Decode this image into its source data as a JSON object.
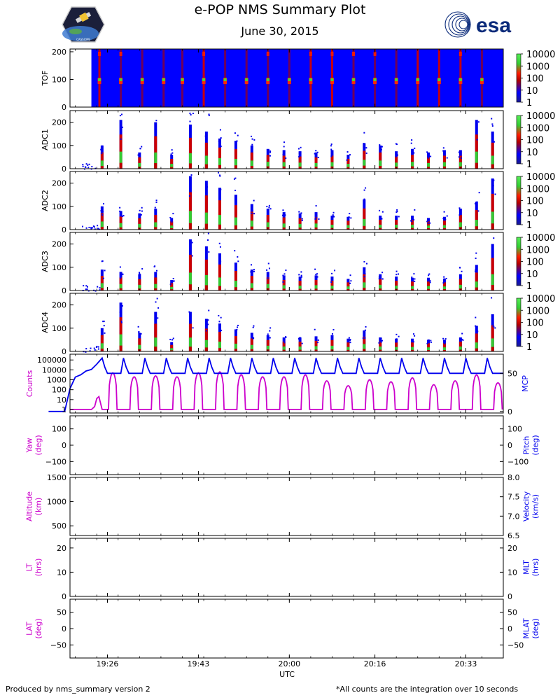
{
  "header": {
    "title": "e-POP NMS Summary Plot",
    "date": "June 30, 2015",
    "logo_left": "e-POP mission patch",
    "logo_right": "esa"
  },
  "footer": {
    "left": "Produced by nms_summary version 2",
    "right": "*All counts are the integration over 10 seconds"
  },
  "colors": {
    "magenta": "#cc00cc",
    "blue": "#0000ee",
    "spectro_bg": "#0000ff",
    "esa_blue": "#0a2a7a"
  },
  "chart_data": [
    {
      "type": "heatmap",
      "name": "tof",
      "ylabel": "TOF",
      "ylim": [
        0,
        210
      ],
      "yticks": [
        0,
        100,
        200
      ],
      "colorbar": {
        "scale": "log",
        "ticks": [
          "1",
          "10",
          "100",
          "1000",
          "10000"
        ]
      },
      "data_start": "19:23",
      "spike_times": [
        "19:24.5",
        "19:28.5",
        "19:32.5",
        "19:36.5",
        "19:40",
        "19:44",
        "19:48",
        "19:52",
        "19:56",
        "20:00",
        "20:04",
        "20:08",
        "20:12",
        "20:16",
        "20:20",
        "20:24",
        "20:28",
        "20:32",
        "20:36"
      ]
    },
    {
      "type": "scatter",
      "name": "adc1",
      "ylabel": "ADC1",
      "ylim": [
        0,
        250
      ],
      "yticks": [
        0,
        100,
        200
      ],
      "colorbar": {
        "scale": "log",
        "ticks": [
          "1",
          "10",
          "100",
          "1000",
          "10000"
        ]
      },
      "times": [
        "19:25",
        "19:28.5",
        "19:32",
        "19:35",
        "19:38",
        "19:41.5",
        "19:44.5",
        "19:47",
        "19:50",
        "19:53",
        "19:56",
        "19:59",
        "20:02",
        "20:05",
        "20:08",
        "20:11",
        "20:14",
        "20:17",
        "20:20",
        "20:23",
        "20:26",
        "20:29",
        "20:32",
        "20:35",
        "20:38"
      ],
      "peaks": [
        100,
        210,
        70,
        200,
        60,
        190,
        160,
        130,
        120,
        100,
        85,
        80,
        75,
        70,
        80,
        60,
        110,
        100,
        75,
        85,
        70,
        80,
        80,
        210,
        160
      ]
    },
    {
      "type": "scatter",
      "name": "adc2",
      "ylabel": "ADC2",
      "ylim": [
        0,
        250
      ],
      "yticks": [
        0,
        100,
        200
      ],
      "colorbar": {
        "scale": "log",
        "ticks": [
          "1",
          "10",
          "100",
          "1000",
          "10000"
        ]
      },
      "times": [
        "19:25",
        "19:28.5",
        "19:32",
        "19:35",
        "19:38",
        "19:41.5",
        "19:44.5",
        "19:47",
        "19:50",
        "19:53",
        "19:56",
        "19:59",
        "20:02",
        "20:05",
        "20:08",
        "20:11",
        "20:14",
        "20:17",
        "20:20",
        "20:23",
        "20:26",
        "20:29",
        "20:32",
        "20:35",
        "20:38"
      ],
      "peaks": [
        100,
        80,
        70,
        90,
        50,
        230,
        210,
        180,
        150,
        110,
        90,
        75,
        70,
        75,
        60,
        55,
        130,
        60,
        60,
        60,
        50,
        55,
        90,
        120,
        220
      ]
    },
    {
      "type": "scatter",
      "name": "adc3",
      "ylabel": "ADC3",
      "ylim": [
        0,
        250
      ],
      "yticks": [
        0,
        100,
        200
      ],
      "colorbar": {
        "scale": "log",
        "ticks": [
          "1",
          "10",
          "100",
          "1000",
          "10000"
        ]
      },
      "times": [
        "19:25",
        "19:28.5",
        "19:32",
        "19:35",
        "19:38",
        "19:41.5",
        "19:44.5",
        "19:47",
        "19:50",
        "19:53",
        "19:56",
        "19:59",
        "20:02",
        "20:05",
        "20:08",
        "20:11",
        "20:14",
        "20:17",
        "20:20",
        "20:23",
        "20:26",
        "20:29",
        "20:32",
        "20:35",
        "20:38"
      ],
      "peaks": [
        90,
        80,
        70,
        80,
        45,
        220,
        190,
        160,
        120,
        90,
        80,
        65,
        60,
        65,
        60,
        50,
        100,
        70,
        60,
        55,
        55,
        50,
        70,
        110,
        200
      ]
    },
    {
      "type": "scatter",
      "name": "adc4",
      "ylabel": "ADC4",
      "ylim": [
        0,
        250
      ],
      "yticks": [
        0,
        100,
        200
      ],
      "colorbar": {
        "scale": "log",
        "ticks": [
          "1",
          "10",
          "100",
          "1000",
          "10000"
        ]
      },
      "times": [
        "19:25",
        "19:28.5",
        "19:32",
        "19:35",
        "19:38",
        "19:41.5",
        "19:44.5",
        "19:47",
        "19:50",
        "19:53",
        "19:56",
        "19:59",
        "20:02",
        "20:05",
        "20:08",
        "20:11",
        "20:14",
        "20:17",
        "20:20",
        "20:23",
        "20:26",
        "20:29",
        "20:32",
        "20:35",
        "20:38"
      ],
      "peaks": [
        100,
        210,
        80,
        170,
        40,
        170,
        140,
        120,
        95,
        80,
        70,
        60,
        60,
        65,
        70,
        55,
        90,
        60,
        55,
        55,
        50,
        50,
        60,
        110,
        160
      ]
    },
    {
      "type": "line",
      "name": "counts-mcp",
      "ylabel_left": "Counts",
      "ylabel_right": "MCP",
      "yscale_left": "log",
      "ylim_left_decades": [
        0,
        5.3
      ],
      "yticks_left": [
        "1",
        "10",
        "100",
        "1000",
        "10000",
        "100000"
      ],
      "ylim_right": [
        -2,
        75
      ],
      "yticks_right": [
        0,
        50
      ],
      "series": [
        {
          "name": "Counts",
          "color": "#cc00cc",
          "x": [
            "19:19",
            "19:20",
            "19:21",
            "19:22",
            "19:23",
            "19:23.6",
            "19:24",
            "19:24.4",
            "19:25",
            "19:25.5",
            "19:26",
            "19:27",
            "19:28",
            "19:29",
            "19:30",
            "19:31",
            "19:32",
            "19:33",
            "19:34",
            "19:35",
            "19:36",
            "19:37",
            "19:38",
            "19:39",
            "19:40",
            "19:41",
            "19:42",
            "19:43",
            "19:44",
            "19:45",
            "19:46",
            "19:47",
            "19:48",
            "19:49",
            "19:50",
            "19:51",
            "19:52",
            "19:53",
            "19:54",
            "19:55",
            "19:56",
            "19:57",
            "19:58",
            "19:59",
            "20:00",
            "20:01",
            "20:02",
            "20:03",
            "20:04",
            "20:05",
            "20:06",
            "20:07",
            "20:08",
            "20:09",
            "20:10",
            "20:11",
            "20:12",
            "20:13",
            "20:14",
            "20:15",
            "20:16",
            "20:17",
            "20:18",
            "20:19",
            "20:20",
            "20:21",
            "20:22",
            "20:23",
            "20:24",
            "20:25",
            "20:26",
            "20:27",
            "20:28",
            "20:29",
            "20:30",
            "20:31",
            "20:32",
            "20:33",
            "20:34",
            "20:35",
            "20:36",
            "20:37",
            "20:38",
            "20:39"
          ],
          "log10_values": [
            0,
            0,
            0,
            0,
            0,
            0.3,
            1.1,
            1.3,
            0,
            0,
            0,
            3.7,
            0,
            0,
            0,
            3.3,
            0,
            0,
            0,
            3.4,
            0,
            0,
            0,
            3.3,
            0,
            0,
            0,
            3.7,
            0,
            0,
            0,
            3.8,
            0,
            0,
            0,
            3.5,
            0,
            0,
            0,
            3.3,
            0,
            0,
            0,
            3.3,
            0,
            0,
            0,
            3.5,
            0,
            0,
            0,
            2.9,
            0,
            0,
            0,
            2.4,
            0,
            0,
            0,
            3.0,
            0,
            0,
            0,
            2.8,
            0,
            0,
            0,
            3.2,
            0,
            0,
            0,
            2.5,
            0,
            0,
            0,
            2.9,
            0,
            0,
            0,
            3.5,
            0,
            0,
            0,
            2.7
          ]
        },
        {
          "name": "MCP",
          "color": "#0000ee",
          "x": [
            "19:15",
            "19:16",
            "19:17",
            "19:18",
            "19:19",
            "19:20",
            "19:21",
            "19:22",
            "19:23",
            "19:24",
            "19:25"
          ],
          "values": [
            0,
            0,
            0,
            0,
            30,
            45,
            48,
            53,
            55,
            62,
            70
          ],
          "note": "then periodic cycles of ~4 min alternating between ~50 and ~70"
        }
      ]
    },
    {
      "type": "line",
      "name": "yaw-pitch",
      "ylabel_left": "Yaw\n(deg)",
      "ylabel_right": "Pitch\n(deg)",
      "ylim": [
        -180,
        180
      ],
      "yticks": [
        -100,
        0,
        100
      ],
      "series": []
    },
    {
      "type": "line",
      "name": "altitude-velocity",
      "ylabel_left": "Altitude\n(km)",
      "ylabel_right": "Velocity\n(km/s)",
      "ylim_left": [
        300,
        1500
      ],
      "yticks_left": [
        500,
        1000,
        1500
      ],
      "ylim_right": [
        6.5,
        8.0
      ],
      "yticks_right": [
        "6.5",
        "7.0",
        "7.5",
        "8.0"
      ],
      "series": []
    },
    {
      "type": "line",
      "name": "lt-mlt",
      "ylabel_left": "LT\n(hrs)",
      "ylabel_right": "MLT\n(hrs)",
      "ylim": [
        0,
        24
      ],
      "yticks": [
        0,
        10,
        20
      ],
      "series": []
    },
    {
      "type": "line",
      "name": "lat-mlat",
      "ylabel_left": "LAT\n(deg)",
      "ylabel_right": "MLAT\n(deg)",
      "ylim": [
        -90,
        90
      ],
      "yticks": [
        -50,
        0,
        50
      ],
      "series": []
    }
  ],
  "xaxis": {
    "label": "UTC",
    "range": [
      "19:19",
      "20:40"
    ],
    "ticks": [
      "19:26",
      "19:43",
      "20:00",
      "20:16",
      "20:33"
    ]
  }
}
